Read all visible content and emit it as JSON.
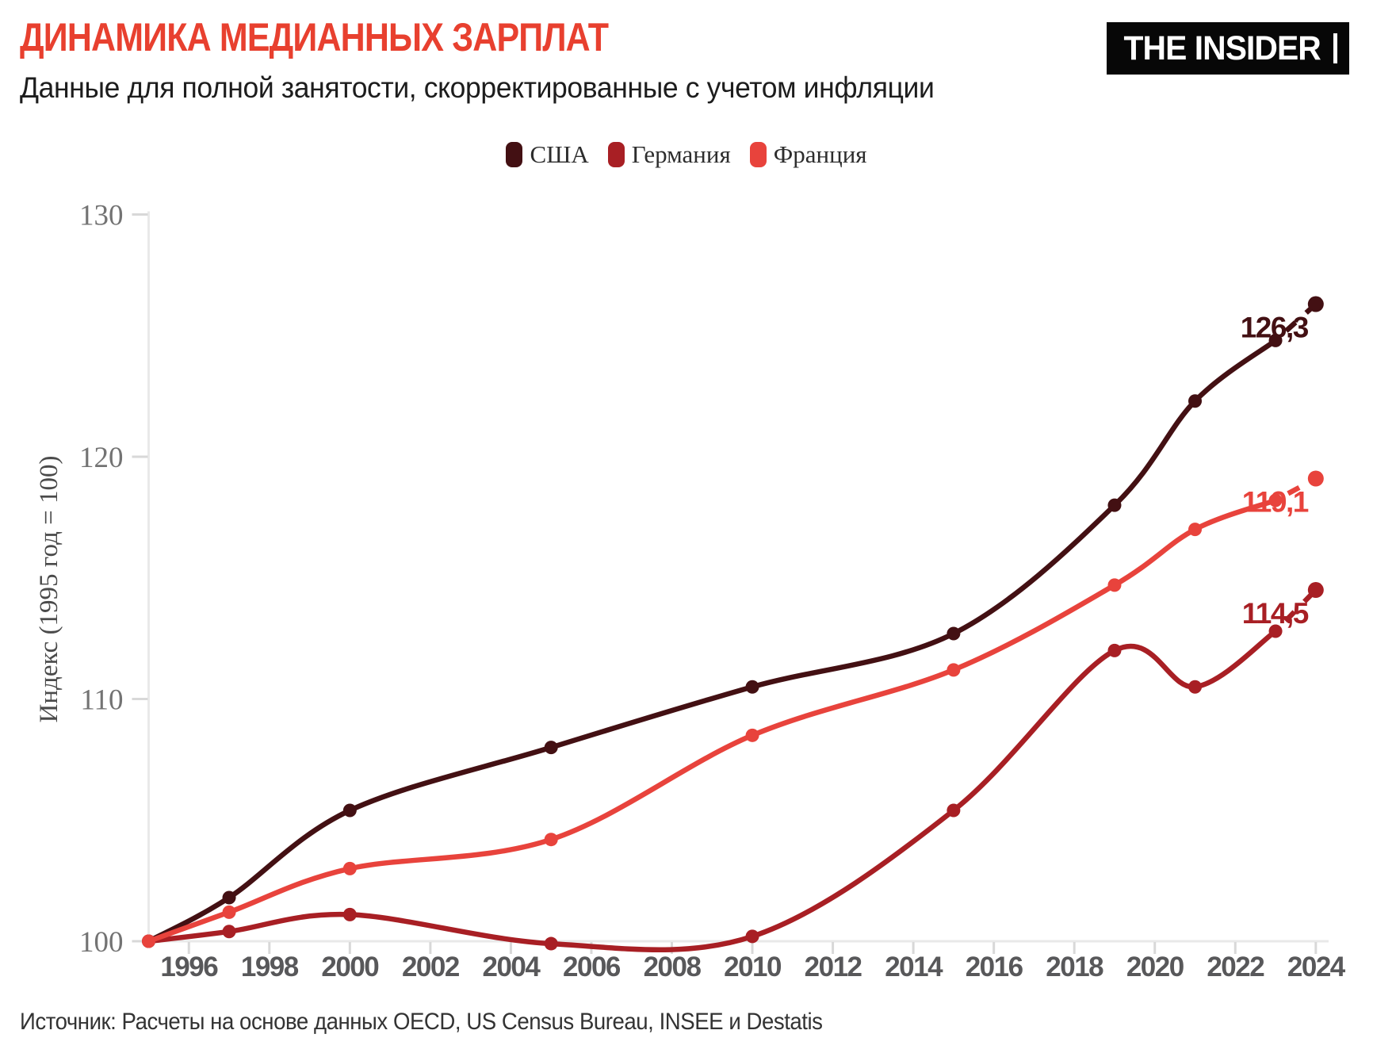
{
  "header": {
    "title": "ДИНАМИКА МЕДИАННЫХ ЗАРПЛАТ",
    "subtitle": "Данные для полной занятости, скорректированные с учетом инфляции",
    "logo_text": "THE INSIDER"
  },
  "source": "Источник: Расчеты на основе данных OECD, US Census Bureau, INSEE и Destatis",
  "colors": {
    "title": "#e8402f",
    "axis_line": "#e9e9e9",
    "tick_mark": "#d8d8d8",
    "x_tick_label": "#58585a",
    "y_tick_label": "#737373"
  },
  "chart_data": {
    "type": "line",
    "title": "ДИНАМИКА МЕДИАННЫХ ЗАРПЛАТ",
    "xlabel": "",
    "ylabel": "Индекс (1995 год = 100)",
    "x": [
      1995,
      1997,
      2000,
      2005,
      2010,
      2015,
      2019,
      2021,
      2023,
      2024
    ],
    "series": [
      {
        "id": "usa",
        "name": "США",
        "color": "#431013",
        "values": [
          100,
          101.8,
          105.4,
          108.0,
          110.5,
          112.7,
          118.0,
          122.3,
          124.8,
          126.3
        ],
        "end_label": "126,3"
      },
      {
        "id": "germany",
        "name": "Германия",
        "color": "#a81f24",
        "values": [
          100,
          100.4,
          101.1,
          99.9,
          100.2,
          105.4,
          112.0,
          110.5,
          112.8,
          114.5
        ],
        "end_label": "114,5"
      },
      {
        "id": "france",
        "name": "Франция",
        "color": "#e8433c",
        "values": [
          100,
          101.2,
          103.0,
          104.2,
          108.5,
          111.2,
          114.7,
          117.0,
          118.2,
          119.1
        ],
        "end_label": "119,1"
      }
    ],
    "x_ticks": [
      1996,
      1998,
      2000,
      2002,
      2004,
      2006,
      2008,
      2010,
      2012,
      2014,
      2016,
      2018,
      2020,
      2022,
      2024
    ],
    "y_ticks": [
      100,
      110,
      120,
      130
    ],
    "ylim": [
      100,
      130
    ],
    "xlim": [
      1995,
      2024
    ],
    "grid": false,
    "legend_position": "top-center",
    "markers": true,
    "last_point_estimate_dashed": true
  }
}
